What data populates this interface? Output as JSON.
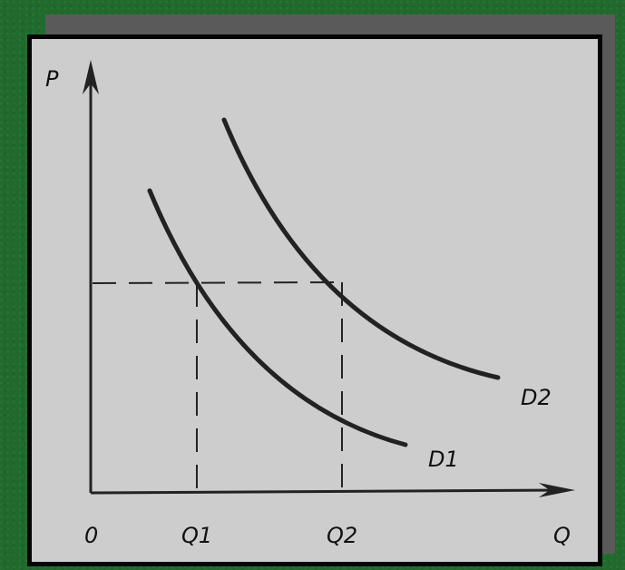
{
  "chart_data": {
    "type": "line",
    "y_axis_label": "P",
    "x_axis_label": "Q",
    "origin_label": "0",
    "x_ticks": [
      "Q1",
      "Q2"
    ],
    "series": [
      {
        "name": "D1",
        "color": "#222222"
      },
      {
        "name": "D2",
        "color": "#222222"
      }
    ],
    "reference_lines": [
      "dashed price level",
      "dashed Q1 drop line",
      "dashed Q2 drop line"
    ],
    "grid": false,
    "legend": "none",
    "stroke_color": "#222222",
    "background_color": "#cdcdcd",
    "frame_color": "#050505",
    "page_background": "#1f6a2c"
  }
}
